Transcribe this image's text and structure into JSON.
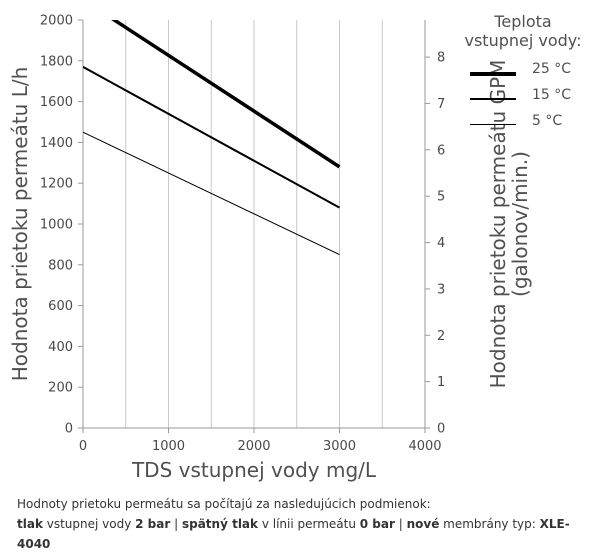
{
  "chart_data": {
    "type": "line",
    "ylabel": "Hodnota prietoku permeátu L/h",
    "ylabel_right": [
      "Hodnota prietoku permeátu GPM",
      "(galonov/min.)"
    ],
    "xlabel": "TDS vstupnej vody mg/L",
    "xlim": [
      0,
      4000
    ],
    "ylim": [
      0,
      2000
    ],
    "ylim_right": [
      0,
      8.8
    ],
    "x_ticks": [
      0,
      1000,
      2000,
      3000,
      4000
    ],
    "y_ticks": [
      0,
      200,
      400,
      600,
      800,
      1000,
      1200,
      1400,
      1600,
      1800,
      2000
    ],
    "y_right_ticks": [
      0,
      1,
      2,
      3,
      4,
      5,
      6,
      7,
      8
    ],
    "grid": "vertical",
    "legend": {
      "title": "Teplota vstupnej vody:",
      "position": "top-right"
    },
    "series": [
      {
        "name": "25 °C",
        "weight": "heavy",
        "color": "#000000",
        "x": [
          0,
          3000
        ],
        "y": [
          2100,
          1280
        ]
      },
      {
        "name": "15 °C",
        "weight": "medium",
        "color": "#000000",
        "x": [
          0,
          3000
        ],
        "y": [
          1770,
          1080
        ]
      },
      {
        "name": "5 °C",
        "weight": "light",
        "color": "#000000",
        "x": [
          0,
          3000
        ],
        "y": [
          1450,
          850
        ]
      }
    ]
  },
  "note": {
    "line1": "Hodnoty prietoku permeátu sa počítajú za nasledujúcich podmienok:",
    "p1": "tlak",
    "p2": " vstupnej vody ",
    "p3": "2 bar",
    "p4": " | ",
    "p5": "spätný tlak",
    "p6": " v línii permeátu ",
    "p7": "0 bar",
    "p8": " | ",
    "p9": "nové",
    "p10": " membrány typ: ",
    "p11": "XLE-4040"
  }
}
